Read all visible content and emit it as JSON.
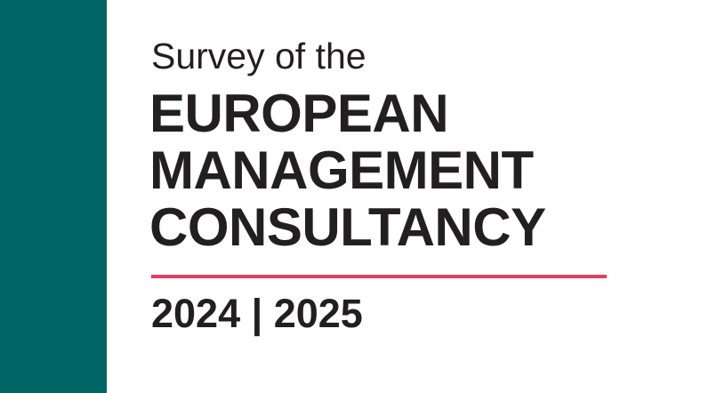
{
  "cover": {
    "subtitle": "Survey of the",
    "title_lines": [
      "EUROPEAN",
      "MANAGEMENT",
      "CONSULTANCY"
    ],
    "years": "2024 | 2025",
    "accent_color": "#e0415f",
    "band_color": "#006665"
  }
}
